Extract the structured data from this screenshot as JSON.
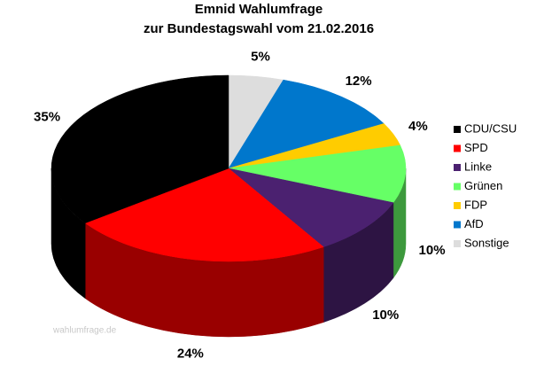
{
  "chart_data": {
    "type": "pie",
    "title": "Emnid Wahlumfrage",
    "subtitle": "zur Bundestagswahl vom 21.02.2016",
    "watermark": "wahlumfrage.de",
    "categories": [
      "CDU/CSU",
      "SPD",
      "Linke",
      "Grünen",
      "FDP",
      "AfD",
      "Sonstige"
    ],
    "values": [
      35,
      24,
      10,
      10,
      4,
      12,
      5
    ],
    "value_labels": [
      "35%",
      "24%",
      "10%",
      "10%",
      "4%",
      "12%",
      "5%"
    ],
    "colors": [
      "#000000",
      "#ff0000",
      "#4b2170",
      "#66ff66",
      "#ffcc00",
      "#0077cc",
      "#dddddd"
    ],
    "legend": "right"
  }
}
